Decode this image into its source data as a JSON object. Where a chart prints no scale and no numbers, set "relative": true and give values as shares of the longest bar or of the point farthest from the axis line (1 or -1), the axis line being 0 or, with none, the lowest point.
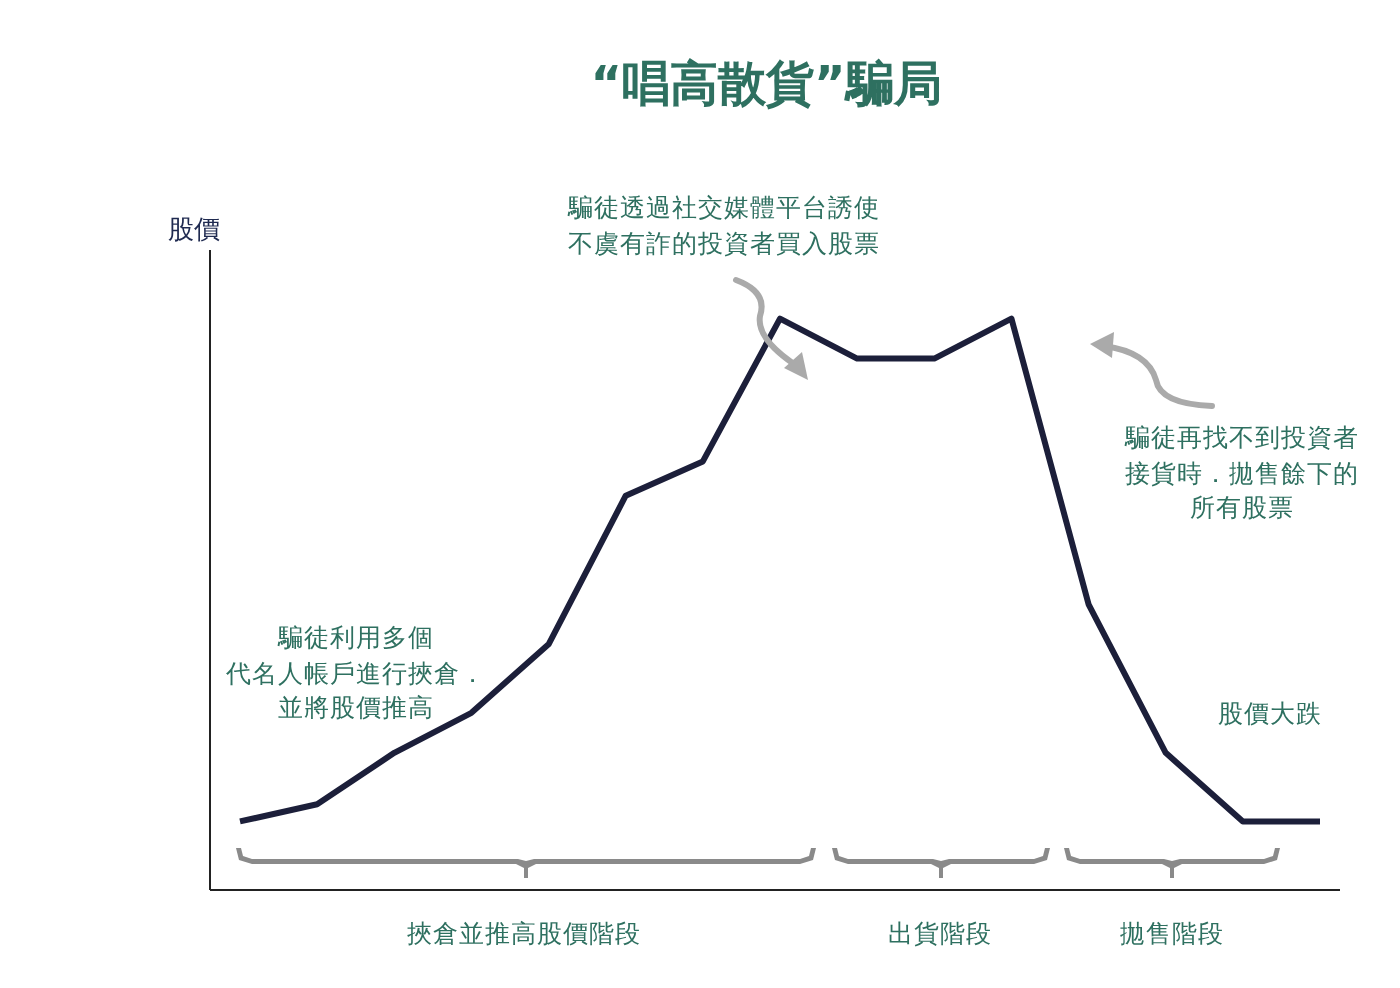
{
  "chart_data": {
    "type": "line",
    "title": "“唱高散貨”騙局",
    "ylabel": "股價",
    "relative": true,
    "categories": [
      null,
      null,
      null,
      null,
      null,
      null,
      null,
      null,
      null,
      null,
      null,
      null,
      null,
      null,
      null
    ],
    "series": [
      {
        "color": "#1c1f3a",
        "values": [
          0.12,
          0.15,
          0.24,
          0.31,
          0.43,
          0.69,
          0.75,
          1,
          0.93,
          0.93,
          1,
          0.5,
          0.24,
          0.12,
          0.12
        ]
      }
    ],
    "marker": "none",
    "line_style": "solid",
    "grid": false,
    "legend": false,
    "annotations": [
      "騙徒透過社交媒體平台誘使不虞有詐的投資者買入股票",
      "騙徒再找不到投資者接貨時．拋售餘下的所有股票",
      "騙徒利用多個代名人帳戶進行挾倉．並將股價推高",
      "股價大跌",
      "挾倉並推高股價階段",
      "出貨階段",
      "拋售階段"
    ]
  }
}
